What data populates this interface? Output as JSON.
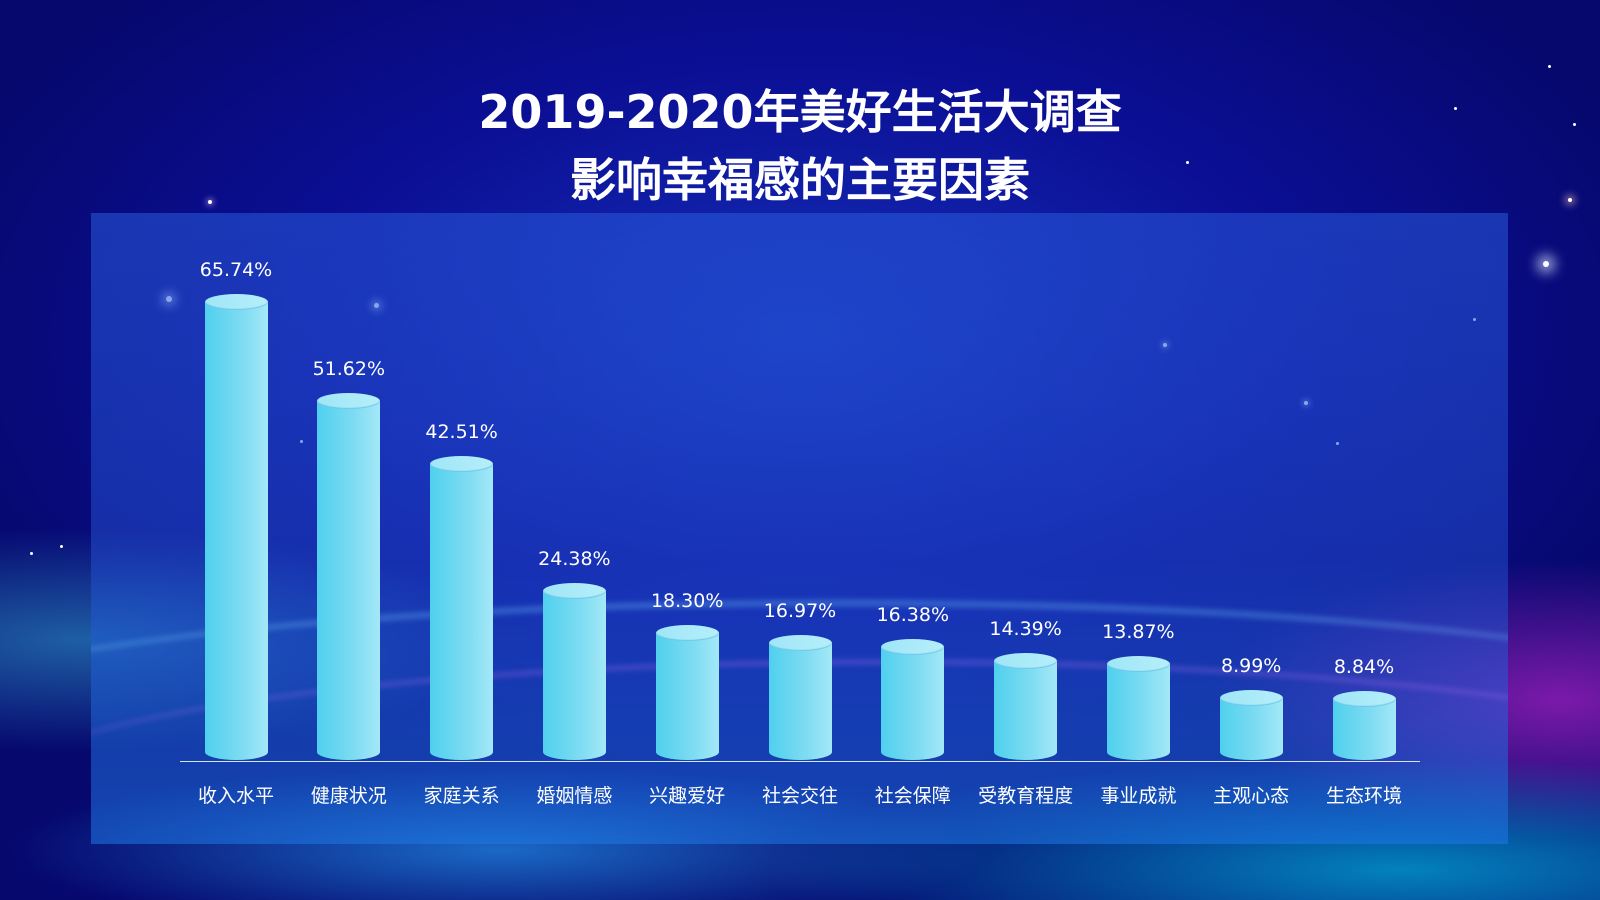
{
  "title": {
    "line1": "2019-2020年美好生活大调查",
    "line2": "影响幸福感的主要因素"
  },
  "colors": {
    "background": "#0b0f95",
    "panel": "#2a5ad8",
    "bar": "#7fdcf2",
    "text": "#ffffff"
  },
  "labels": [
    "65.74%",
    "51.62%",
    "42.51%",
    "24.38%",
    "18.30%",
    "16.97%",
    "16.38%",
    "14.39%",
    "13.87%",
    "8.99%",
    "8.84%"
  ],
  "chart_data": {
    "type": "bar",
    "title": "2019-2020年美好生活大调查 影响幸福感的主要因素",
    "xlabel": "",
    "ylabel": "",
    "unit": "%",
    "grid": false,
    "legend": "none",
    "categories": [
      "收入水平",
      "健康状况",
      "家庭关系",
      "婚姻情感",
      "兴趣爱好",
      "社会交往",
      "社会保障",
      "受教育程度",
      "事业成就",
      "主观心态",
      "生态环境"
    ],
    "values": [
      65.74,
      51.62,
      42.51,
      24.38,
      18.3,
      16.97,
      16.38,
      14.39,
      13.87,
      8.99,
      8.84
    ],
    "ylim": [
      0,
      70
    ]
  }
}
